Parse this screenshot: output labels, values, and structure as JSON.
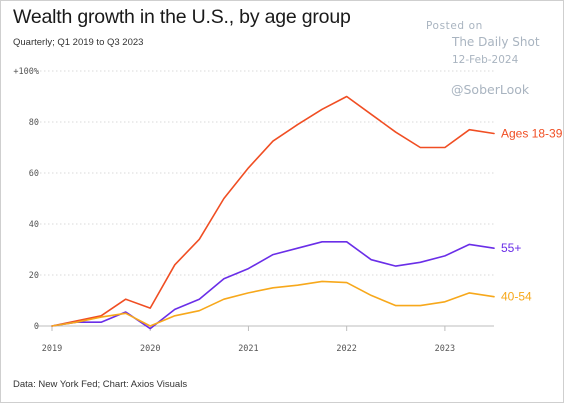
{
  "chart_data": {
    "type": "line",
    "title": "Wealth growth in the U.S., by age group",
    "subtitle": "Quarterly; Q1 2019 to Q3 2023",
    "source": "Data: New York Fed; Chart: Axios Visuals",
    "x": [
      "2019-Q1",
      "2019-Q2",
      "2019-Q3",
      "2019-Q4",
      "2020-Q1",
      "2020-Q2",
      "2020-Q3",
      "2020-Q4",
      "2021-Q1",
      "2021-Q2",
      "2021-Q3",
      "2021-Q4",
      "2022-Q1",
      "2022-Q2",
      "2022-Q3",
      "2022-Q4",
      "2023-Q1",
      "2023-Q2",
      "2023-Q3"
    ],
    "x_ticks": [
      {
        "x": "2019-Q1",
        "label": "2019"
      },
      {
        "x": "2020-Q1",
        "label": "2020"
      },
      {
        "x": "2021-Q1",
        "label": "2021"
      },
      {
        "x": "2022-Q1",
        "label": "2022"
      },
      {
        "x": "2023-Q1",
        "label": "2023"
      }
    ],
    "y_ticks": [
      {
        "value": 0,
        "label": "0"
      },
      {
        "value": 20,
        "label": "20"
      },
      {
        "value": 40,
        "label": "40"
      },
      {
        "value": 60,
        "label": "60"
      },
      {
        "value": 80,
        "label": "80"
      },
      {
        "value": 100,
        "label": "+100%"
      }
    ],
    "ylim": [
      0,
      100
    ],
    "grid": "horizontal",
    "legend": "direct labels at line ends",
    "series": [
      {
        "name": "Ages 18-39",
        "color": "#f04e23",
        "values": [
          0,
          2,
          4,
          10.5,
          7,
          24,
          34,
          50,
          62,
          72.5,
          79,
          85,
          90,
          83,
          76,
          70,
          70,
          77,
          75.5
        ]
      },
      {
        "name": "55+",
        "color": "#6a2ee8",
        "values": [
          0,
          1.5,
          1.5,
          5.5,
          -1,
          6.5,
          10.5,
          18.5,
          22.5,
          28,
          30.5,
          33,
          33,
          26,
          23.5,
          25,
          27.5,
          32,
          30.5
        ]
      },
      {
        "name": "40-54",
        "color": "#f7a81b",
        "values": [
          0,
          1.5,
          3.5,
          5,
          0,
          4,
          6,
          10.5,
          13,
          15,
          16,
          17.5,
          17,
          12,
          8,
          8,
          9.5,
          13,
          11.5
        ]
      }
    ]
  },
  "watermark": {
    "posted": "Posted on",
    "outlet": "The Daily Shot",
    "date": "12-Feb-2024",
    "handle": "@SoberLook"
  }
}
